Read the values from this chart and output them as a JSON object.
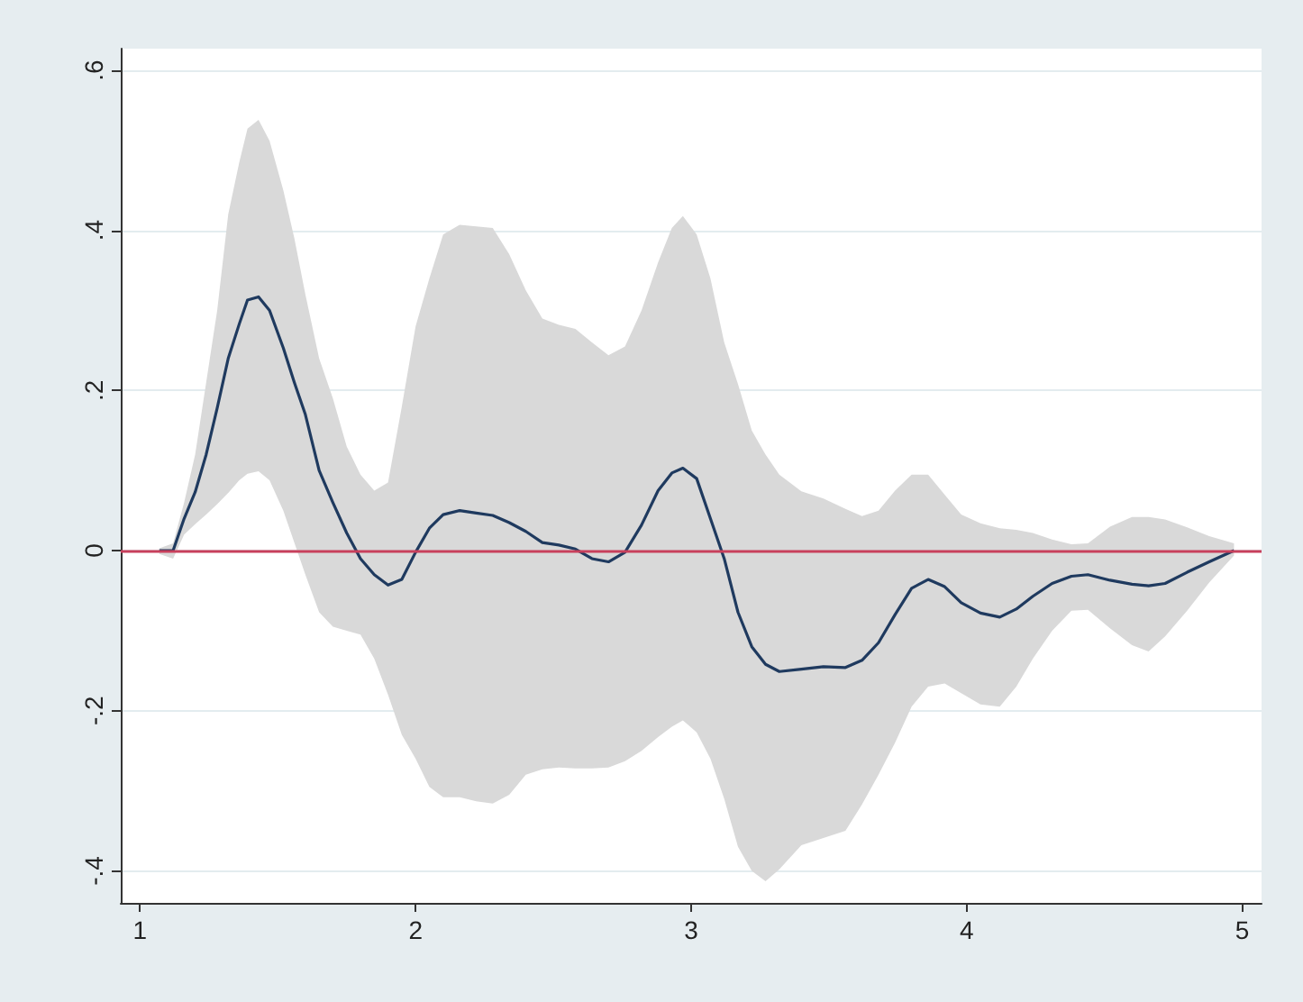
{
  "chart_data": {
    "type": "line",
    "x": [
      1.07,
      1.12,
      1.16,
      1.2,
      1.24,
      1.28,
      1.32,
      1.36,
      1.39,
      1.43,
      1.47,
      1.52,
      1.56,
      1.6,
      1.65,
      1.7,
      1.75,
      1.8,
      1.85,
      1.9,
      1.95,
      2.0,
      2.05,
      2.1,
      2.16,
      2.22,
      2.28,
      2.34,
      2.4,
      2.46,
      2.52,
      2.58,
      2.64,
      2.7,
      2.76,
      2.82,
      2.88,
      2.93,
      2.97,
      3.02,
      3.07,
      3.12,
      3.17,
      3.22,
      3.27,
      3.32,
      3.4,
      3.48,
      3.56,
      3.62,
      3.68,
      3.74,
      3.8,
      3.86,
      3.92,
      3.98,
      4.05,
      4.12,
      4.18,
      4.24,
      4.31,
      4.38,
      4.44,
      4.52,
      4.6,
      4.66,
      4.72,
      4.8,
      4.88,
      4.97
    ],
    "series": [
      {
        "color": "#1f3a5f",
        "values": [
          0,
          0,
          0.04,
          0.073,
          0.12,
          0.178,
          0.24,
          0.283,
          0.313,
          0.317,
          0.3,
          0.253,
          0.21,
          0.17,
          0.1,
          0.06,
          0.022,
          -0.01,
          -0.03,
          -0.043,
          -0.036,
          -0.002,
          0.028,
          0.045,
          0.05,
          0.047,
          0.044,
          0.035,
          0.024,
          0.01,
          0.007,
          0.002,
          -0.01,
          -0.014,
          -0.002,
          0.032,
          0.075,
          0.097,
          0.103,
          0.09,
          0.04,
          -0.01,
          -0.077,
          -0.12,
          -0.142,
          -0.151,
          -0.148,
          -0.145,
          -0.146,
          -0.137,
          -0.115,
          -0.08,
          -0.047,
          -0.036,
          -0.045,
          -0.065,
          -0.078,
          -0.083,
          -0.073,
          -0.057,
          -0.041,
          -0.032,
          -0.03,
          -0.037,
          -0.042,
          -0.044,
          -0.041,
          -0.027,
          -0.014,
          0
        ],
        "upper": [
          0.003,
          0.009,
          0.06,
          0.12,
          0.21,
          0.3,
          0.42,
          0.485,
          0.527,
          0.538,
          0.512,
          0.45,
          0.39,
          0.32,
          0.24,
          0.19,
          0.13,
          0.095,
          0.075,
          0.085,
          0.18,
          0.28,
          0.34,
          0.395,
          0.407,
          0.405,
          0.403,
          0.37,
          0.325,
          0.29,
          0.282,
          0.277,
          0.26,
          0.244,
          0.255,
          0.3,
          0.36,
          0.403,
          0.418,
          0.395,
          0.34,
          0.26,
          0.208,
          0.15,
          0.12,
          0.095,
          0.074,
          0.065,
          0.052,
          0.043,
          0.05,
          0.075,
          0.095,
          0.095,
          0.07,
          0.045,
          0.034,
          0.028,
          0.026,
          0.022,
          0.014,
          0.008,
          0.009,
          0.03,
          0.042,
          0.042,
          0.039,
          0.029,
          0.018,
          0.009
        ],
        "lower": [
          -0.004,
          -0.01,
          0.02,
          0.033,
          0.045,
          0.058,
          0.072,
          0.088,
          0.096,
          0.099,
          0.088,
          0.05,
          0.01,
          -0.03,
          -0.077,
          -0.095,
          -0.1,
          -0.105,
          -0.135,
          -0.18,
          -0.23,
          -0.26,
          -0.295,
          -0.308,
          -0.308,
          -0.313,
          -0.316,
          -0.305,
          -0.28,
          -0.273,
          -0.271,
          -0.272,
          -0.272,
          -0.271,
          -0.263,
          -0.25,
          -0.233,
          -0.22,
          -0.212,
          -0.227,
          -0.26,
          -0.31,
          -0.37,
          -0.4,
          -0.413,
          -0.398,
          -0.368,
          -0.359,
          -0.35,
          -0.317,
          -0.28,
          -0.24,
          -0.195,
          -0.17,
          -0.166,
          -0.178,
          -0.192,
          -0.195,
          -0.17,
          -0.135,
          -0.1,
          -0.075,
          -0.074,
          -0.097,
          -0.118,
          -0.126,
          -0.107,
          -0.075,
          -0.04,
          -0.006
        ]
      }
    ],
    "xlim": [
      0.93,
      5.07
    ],
    "xticks": [
      1,
      2,
      3,
      4,
      5
    ],
    "ylim": [
      -0.44,
      0.627
    ],
    "yticks": [
      {
        "value": -0.4,
        "label": "-.4"
      },
      {
        "value": -0.2,
        "label": "-.2"
      },
      {
        "value": 0,
        "label": "0"
      },
      {
        "value": 0.2,
        "label": ".2"
      },
      {
        "value": 0.4,
        "label": ".4"
      },
      {
        "value": 0.6,
        "label": ".6"
      }
    ],
    "ref_lines": [
      {
        "axis": "y",
        "value": 0,
        "color": "#c8405c"
      }
    ],
    "grid": "y",
    "marker": "none"
  }
}
